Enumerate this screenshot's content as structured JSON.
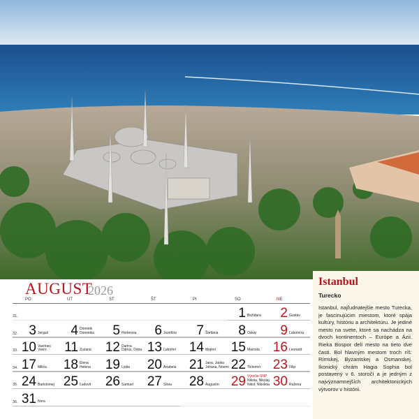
{
  "calendar": {
    "month": "AUGUST",
    "year": "2026",
    "weekdays": [
      "PO",
      "UT",
      "ST",
      "ŠT",
      "PI",
      "SO",
      "NE"
    ],
    "accent": "#b5121b",
    "weeks": [
      {
        "week": "31.",
        "days": [
          null,
          null,
          null,
          null,
          null,
          {
            "d": "1",
            "names": [
              "Božidara"
            ]
          },
          {
            "d": "2",
            "names": [
              "Gustáv"
            ],
            "red": true
          }
        ]
      },
      {
        "week": "32.",
        "days": [
          {
            "d": "3",
            "names": [
              "Jerguš"
            ]
          },
          {
            "d": "4",
            "names": [
              "Dominik",
              "Dominika"
            ]
          },
          {
            "d": "5",
            "names": [
              "Hortenzia"
            ]
          },
          {
            "d": "6",
            "names": [
              "Jozefína"
            ]
          },
          {
            "d": "7",
            "names": [
              "Štefánia"
            ]
          },
          {
            "d": "8",
            "names": [
              "Oskár"
            ]
          },
          {
            "d": "9",
            "names": [
              "Ľubomíra"
            ],
            "red": true
          }
        ]
      },
      {
        "week": "33.",
        "days": [
          {
            "d": "10",
            "names": [
              "Vavrinec",
              "Vavro"
            ]
          },
          {
            "d": "11",
            "names": [
              "Zuzana"
            ]
          },
          {
            "d": "12",
            "names": [
              "Darina",
              "Dárius, Dária"
            ]
          },
          {
            "d": "13",
            "names": [
              "Ľubomír"
            ]
          },
          {
            "d": "14",
            "names": [
              "Mojmír"
            ]
          },
          {
            "d": "15",
            "names": [
              "Marcela"
            ]
          },
          {
            "d": "16",
            "names": [
              "Leonard"
            ],
            "red": true
          }
        ]
      },
      {
        "week": "34.",
        "days": [
          {
            "d": "17",
            "names": [
              "Milica"
            ]
          },
          {
            "d": "18",
            "names": [
              "Elena",
              "Helena"
            ]
          },
          {
            "d": "19",
            "names": [
              "Lýdia"
            ]
          },
          {
            "d": "20",
            "names": [
              "Anabela"
            ]
          },
          {
            "d": "21",
            "names": [
              "Jana, Janka",
              "Johana, Noemi"
            ]
          },
          {
            "d": "22",
            "names": [
              "Tichomír"
            ]
          },
          {
            "d": "23",
            "names": [
              "Filip"
            ],
            "red": true
          }
        ]
      },
      {
        "week": "35.",
        "days": [
          {
            "d": "24",
            "names": [
              "Bartolomej"
            ]
          },
          {
            "d": "25",
            "names": [
              "Ľudovít"
            ]
          },
          {
            "d": "26",
            "names": [
              "Samuel"
            ]
          },
          {
            "d": "27",
            "names": [
              "Silvia"
            ]
          },
          {
            "d": "28",
            "names": [
              "Augustín"
            ]
          },
          {
            "d": "29",
            "event": "Výročie SNP",
            "names": [
              "Nikola, Nikolaj",
              "Nikol, Nikoleta"
            ],
            "red": true
          },
          {
            "d": "30",
            "names": [
              "Ružena"
            ],
            "red": true
          }
        ]
      },
      {
        "week": "36.",
        "days": [
          {
            "d": "31",
            "names": [
              "Nora"
            ]
          },
          null,
          null,
          null,
          null,
          null,
          null
        ]
      }
    ]
  },
  "info": {
    "title": "Istanbul",
    "subtitle": "Turecko",
    "text": "Istanbul, najľudnatejšie mesto Turecka, je fascinujúcim miestom, ktoré spája kultúry, históriu a architektúru. Je jediné mesto na svete, ktoré sa nachádza na dvoch kontinentoch – Európe a Ázii. Rieka Bospor delí mesto na tieto dve časti. Bol hlavným mestom troch ríš: Rímskej, Byzantskej a Osmanskej. Ikonický chrám Hagia Sophia bol postavený v 6. storočí a je jedným z najvýznamnejších architektonických výtvorov v histórii."
  }
}
